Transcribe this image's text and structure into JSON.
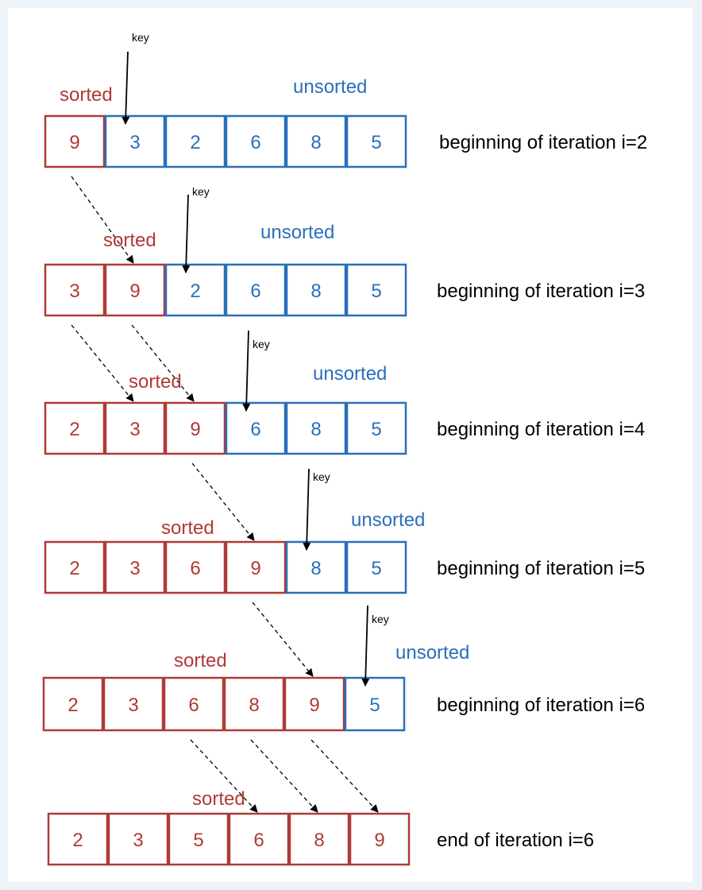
{
  "colors": {
    "sorted": "#b03a36",
    "unsorted": "#2a6fba",
    "arrow": "#000000"
  },
  "labels": {
    "sorted": "sorted",
    "unsorted": "unsorted",
    "key": "key"
  },
  "rows": [
    {
      "values": [
        "9",
        "3",
        "2",
        "6",
        "8",
        "5"
      ],
      "sorted_count": 1,
      "key_index": 1,
      "caption": "beginning of iteration i=2"
    },
    {
      "values": [
        "3",
        "9",
        "2",
        "6",
        "8",
        "5"
      ],
      "sorted_count": 2,
      "key_index": 2,
      "caption": "beginning of iteration i=3"
    },
    {
      "values": [
        "2",
        "3",
        "9",
        "6",
        "8",
        "5"
      ],
      "sorted_count": 3,
      "key_index": 3,
      "caption": "beginning of iteration i=4"
    },
    {
      "values": [
        "2",
        "3",
        "6",
        "9",
        "8",
        "5"
      ],
      "sorted_count": 4,
      "key_index": 4,
      "caption": "beginning of iteration i=5"
    },
    {
      "values": [
        "2",
        "3",
        "6",
        "8",
        "9",
        "5"
      ],
      "sorted_count": 5,
      "key_index": 5,
      "caption": "beginning of iteration i=6"
    },
    {
      "values": [
        "2",
        "3",
        "5",
        "6",
        "8",
        "9"
      ],
      "sorted_count": 6,
      "key_index": null,
      "caption": "end of iteration i=6"
    }
  ],
  "shifts": [
    {
      "from_row": 0,
      "from_col": 0,
      "to_row": 1,
      "to_col": 1
    },
    {
      "from_row": 1,
      "from_col": 0,
      "to_row": 2,
      "to_col": 1
    },
    {
      "from_row": 1,
      "from_col": 1,
      "to_row": 2,
      "to_col": 2
    },
    {
      "from_row": 2,
      "from_col": 2,
      "to_row": 3,
      "to_col": 3
    },
    {
      "from_row": 3,
      "from_col": 3,
      "to_row": 4,
      "to_col": 4
    },
    {
      "from_row": 4,
      "from_col": 2,
      "to_row": 5,
      "to_col": 3
    },
    {
      "from_row": 4,
      "from_col": 3,
      "to_row": 5,
      "to_col": 4
    },
    {
      "from_row": 4,
      "from_col": 4,
      "to_row": 5,
      "to_col": 5
    }
  ]
}
